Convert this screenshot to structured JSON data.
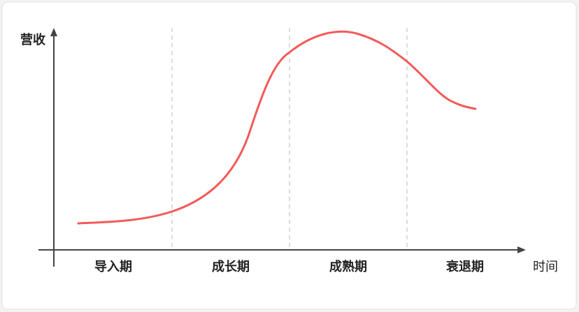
{
  "y_axis_label": "营收",
  "x_axis_label": "时间",
  "stages": [
    "导入期",
    "成长期",
    "成熟期",
    "衰退期"
  ]
}
